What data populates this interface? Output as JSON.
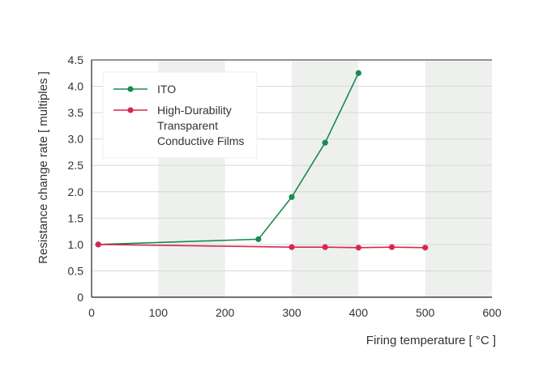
{
  "chart_data": {
    "type": "line",
    "title": "",
    "xlabel": "Firing temperature [ °C ]",
    "ylabel": "Resistance change rate [ multiples ]",
    "xlim": [
      0,
      600
    ],
    "ylim": [
      0,
      4.5
    ],
    "x_ticks": [
      "0",
      "100",
      "200",
      "300",
      "400",
      "500",
      "600"
    ],
    "y_ticks": [
      "0",
      "0.5",
      "1.0",
      "1.5",
      "2.0",
      "2.5",
      "3.0",
      "3.5",
      "4.0",
      "4.5"
    ],
    "shaded_bands": [
      [
        100,
        200
      ],
      [
        300,
        400
      ],
      [
        500,
        600
      ]
    ],
    "grid": "horizontal",
    "legend_position": "top-left",
    "series": [
      {
        "name": "ITO",
        "legend_lines": [
          "ITO"
        ],
        "color": "#1a8a4f",
        "x": [
          10,
          250,
          300,
          350,
          400
        ],
        "y": [
          1.0,
          1.1,
          1.9,
          2.93,
          4.25
        ]
      },
      {
        "name": "High-Durability Transparent Conductive Films",
        "legend_lines": [
          "High-Durability",
          "Transparent",
          "Conductive Films"
        ],
        "color": "#d6294f",
        "x": [
          10,
          300,
          350,
          400,
          450,
          500
        ],
        "y": [
          1.0,
          0.95,
          0.95,
          0.94,
          0.95,
          0.94
        ]
      }
    ]
  }
}
